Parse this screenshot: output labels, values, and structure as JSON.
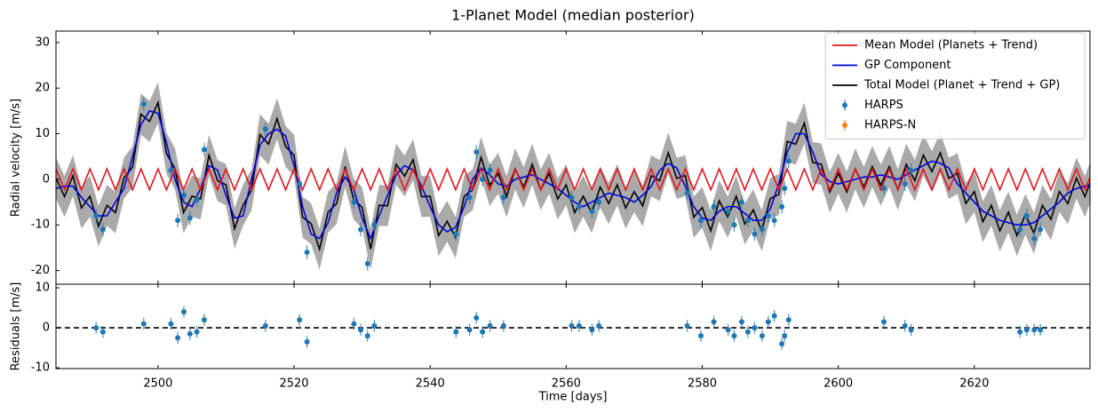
{
  "chart_data": [
    {
      "type": "line",
      "title": "1-Planet Model (median posterior)",
      "ylabel": "Radial velocity [m/s]",
      "x": [
        2485,
        2486.25,
        2487.5,
        2488.75,
        2490,
        2491.25,
        2492.5,
        2493.75,
        2495,
        2496.25,
        2497.5,
        2498.75,
        2500,
        2501.25,
        2502.5,
        2503.75,
        2505,
        2506.25,
        2507.5,
        2508.75,
        2510,
        2511.25,
        2512.5,
        2513.75,
        2515,
        2516.25,
        2517.5,
        2518.75,
        2520,
        2521.25,
        2522.5,
        2523.75,
        2525,
        2526.25,
        2527.5,
        2528.75,
        2530,
        2531.25,
        2532.5,
        2533.75,
        2535,
        2536.25,
        2537.5,
        2538.75,
        2540,
        2541.25,
        2542.5,
        2543.75,
        2545,
        2546.25,
        2547.5,
        2548.75,
        2550,
        2551.25,
        2552.5,
        2553.75,
        2555,
        2556.25,
        2557.5,
        2558.75,
        2560,
        2561.25,
        2562.5,
        2563.75,
        2565,
        2566.25,
        2567.5,
        2568.75,
        2570,
        2571.25,
        2572.5,
        2573.75,
        2575,
        2576.25,
        2577.5,
        2578.75,
        2580,
        2581.25,
        2582.5,
        2583.75,
        2585,
        2586.25,
        2587.5,
        2588.75,
        2590,
        2591.25,
        2592.5,
        2593.75,
        2595,
        2596.25,
        2597.5,
        2598.75,
        2600,
        2601.25,
        2602.5,
        2603.75,
        2605,
        2606.25,
        2607.5,
        2608.75,
        2610,
        2611.25,
        2612.5,
        2613.75,
        2615,
        2616.25,
        2617.5,
        2618.75,
        2620,
        2621.25,
        2622.5,
        2623.75,
        2625,
        2626.25,
        2627.5,
        2628.75,
        2630,
        2631.25,
        2632.5,
        2633.75,
        2635,
        2636.25,
        2637.5
      ],
      "series": [
        {
          "name": "Mean Model (Planets + Trend)",
          "color": "#e8141a",
          "values": [
            2.3,
            -2.3,
            2.3,
            -2.3,
            2.3,
            -2.3,
            2.3,
            -2.3,
            2.3,
            -2.3,
            2.3,
            -2.3,
            2.3,
            -2.3,
            2.3,
            -2.3,
            2.3,
            -2.3,
            2.3,
            -2.3,
            2.3,
            -2.3,
            2.3,
            -2.3,
            2.3,
            -2.3,
            2.3,
            -2.3,
            2.3,
            -2.3,
            2.3,
            -2.3,
            2.3,
            -2.3,
            2.3,
            -2.3,
            2.3,
            -2.3,
            2.3,
            -2.3,
            2.3,
            -2.3,
            2.3,
            -2.3,
            2.3,
            -2.3,
            2.3,
            -2.3,
            2.3,
            -2.3,
            2.3,
            -2.3,
            2.3,
            -2.3,
            2.3,
            -2.3,
            2.3,
            -2.3,
            2.3,
            -2.3,
            2.3,
            -2.3,
            2.3,
            -2.3,
            2.3,
            -2.3,
            2.3,
            -2.3,
            2.3,
            -2.3,
            2.3,
            -2.3,
            2.3,
            -2.3,
            2.3,
            -2.3,
            2.3,
            -2.3,
            2.3,
            -2.3,
            2.3,
            -2.3,
            2.3,
            -2.3,
            2.3,
            -2.3,
            2.3,
            -2.3,
            2.3,
            -2.3,
            2.3,
            -2.3,
            2.3,
            -2.3,
            2.3,
            -2.3,
            2.3,
            -2.3,
            2.3,
            -2.3,
            2.3,
            -2.3,
            2.3,
            -2.3,
            2.3,
            -2.3,
            2.3,
            -2.3,
            2.3,
            -2.3,
            2.3,
            -2.3,
            2.3,
            -2.3,
            2.3,
            -2.3,
            2.3,
            -2.3,
            2.3,
            -2.3,
            2.3,
            -2.3,
            2.3
          ]
        },
        {
          "name": "GP Component",
          "color": "#0000e0",
          "values": [
            -2,
            -1.5,
            -1.5,
            -4,
            -6,
            -8,
            -8,
            -5,
            -2,
            5,
            12,
            15,
            14.5,
            8,
            0,
            -5,
            -6,
            -2,
            3,
            2,
            -3.5,
            -8.5,
            -8,
            0,
            7.5,
            10,
            11,
            9.5,
            3,
            -6,
            -12,
            -13,
            -9.5,
            -3,
            0.5,
            -2,
            -8.5,
            -13,
            -8,
            -3.5,
            1,
            3,
            2,
            -1.5,
            -6,
            -10,
            -11.5,
            -10.5,
            -6,
            0,
            2.5,
            1,
            -1,
            -1.5,
            0,
            0.5,
            1,
            0,
            -1,
            -2,
            -3.5,
            -5,
            -6,
            -5,
            -4,
            -3,
            -3.5,
            -4,
            -5,
            -3.5,
            -1.5,
            2,
            3.5,
            2.5,
            -1.5,
            -6,
            -8.5,
            -9,
            -7,
            -6,
            -6,
            -7.5,
            -9,
            -9,
            -6.5,
            -1,
            6,
            10,
            10,
            6,
            1,
            -0.5,
            -1,
            -0.5,
            0,
            0.5,
            0.5,
            1,
            0.5,
            0,
            1,
            2,
            3,
            4,
            3.5,
            2.5,
            -1,
            -3,
            -5,
            -7,
            -8,
            -9,
            -9.5,
            -10,
            -10,
            -9.5,
            -8,
            -6.5,
            -5,
            -3,
            -2,
            -1.5,
            -1
          ]
        },
        {
          "name": "Total Model (Planet + Trend + GP)",
          "color": "#000000",
          "values": [
            0.3,
            -3.8,
            0.8,
            -6.3,
            -3.7,
            -10.3,
            -5.7,
            -7.3,
            0.3,
            2.7,
            14.3,
            12.7,
            16.8,
            5.7,
            2.3,
            -7.3,
            -3.7,
            -4.3,
            5.3,
            -0.3,
            -1.2,
            -10.8,
            -5.7,
            -2.3,
            9.8,
            7.7,
            13.3,
            7.2,
            5.3,
            -8.3,
            -9.7,
            -15.3,
            -7.2,
            -5.3,
            2.8,
            -4.3,
            -6.2,
            -15.3,
            -5.7,
            -5.8,
            3.3,
            0.7,
            4.3,
            -3.8,
            -3.7,
            -12.3,
            -9.2,
            -12.8,
            -3.7,
            -2.3,
            4.8,
            -1.3,
            1.3,
            -3.8,
            2.3,
            -1.8,
            3.3,
            -2.3,
            1.3,
            -4.3,
            -1.2,
            -7.3,
            -3.7,
            -7.3,
            -1.7,
            -5.3,
            -1.2,
            -6.3,
            -2.7,
            -5.8,
            0.8,
            -0.3,
            5.8,
            0.2,
            0.8,
            -8.3,
            -6.2,
            -11.3,
            -4.7,
            -8.3,
            -3.7,
            -9.8,
            -6.7,
            -11.3,
            -4.2,
            -3.3,
            8.3,
            7.7,
            12.3,
            3.7,
            3.3,
            -2.8,
            1.3,
            -2.8,
            2.3,
            -1.8,
            2.8,
            -1.3,
            2.8,
            -2.3,
            3.3,
            -0.3,
            5.3,
            1.7,
            5.8,
            0.2,
            1.3,
            -5.3,
            -2.7,
            -9.3,
            -5.7,
            -11.3,
            -7.2,
            -12.3,
            -7.7,
            -11.8,
            -5.7,
            -8.8,
            -2.7,
            -5.3,
            0.3,
            -3.8,
            1.3
          ]
        }
      ],
      "band": {
        "color": "#aaaaaa",
        "upper": [
          4.8,
          0.7,
          5.3,
          -1.8,
          0.8,
          -5.8,
          -1.2,
          -2.8,
          4.8,
          7.2,
          18.8,
          17.2,
          21.3,
          10.2,
          6.8,
          -2.8,
          0.8,
          0.2,
          9.8,
          4.2,
          3.3,
          -6.3,
          -1.2,
          2.2,
          14.3,
          12.2,
          17.8,
          11.7,
          9.8,
          -3.8,
          -5.2,
          -10.8,
          -2.7,
          -0.8,
          7.3,
          0.2,
          -1.7,
          -10.8,
          -1.2,
          -1.3,
          7.8,
          5.2,
          8.8,
          0.7,
          0.8,
          -7.8,
          -4.7,
          -8.3,
          0.8,
          2.2,
          9.3,
          3.2,
          5.8,
          0.7,
          6.8,
          2.7,
          7.8,
          2.2,
          5.8,
          0.2,
          3.3,
          -2.8,
          0.8,
          -2.8,
          2.8,
          -0.8,
          3.3,
          -1.8,
          1.8,
          -1.3,
          5.3,
          4.2,
          10.3,
          4.7,
          5.3,
          -3.8,
          -1.7,
          -6.8,
          -0.2,
          -3.8,
          0.8,
          -5.3,
          -2.2,
          -6.8,
          0.3,
          1.2,
          12.8,
          12.2,
          16.8,
          8.2,
          7.8,
          1.7,
          5.8,
          1.7,
          6.8,
          2.7,
          7.3,
          3.2,
          7.3,
          2.2,
          7.8,
          4.2,
          9.8,
          6.2,
          10.3,
          4.7,
          5.8,
          -0.8,
          1.8,
          -4.8,
          -1.2,
          -6.8,
          -2.7,
          -7.8,
          -3.2,
          -7.3,
          -1.2,
          -4.3,
          1.8,
          -0.8,
          4.8,
          0.7,
          5.8
        ],
        "lower": [
          -4.2,
          -8.3,
          -3.7,
          -10.8,
          -8.2,
          -14.8,
          -10.2,
          -11.8,
          -4.2,
          -1.8,
          9.8,
          8.2,
          12.3,
          1.2,
          -2.2,
          -11.8,
          -8.2,
          -8.8,
          0.8,
          -4.8,
          -5.7,
          -15.3,
          -10.2,
          -6.8,
          5.3,
          3.2,
          8.8,
          2.7,
          0.8,
          -12.8,
          -14.2,
          -19.8,
          -11.7,
          -9.8,
          -1.7,
          -8.8,
          -10.7,
          -19.8,
          -10.2,
          -10.3,
          -1.2,
          -3.8,
          -0.2,
          -8.3,
          -8.2,
          -16.8,
          -13.7,
          -17.3,
          -8.2,
          -6.8,
          0.3,
          -5.8,
          -3.2,
          -8.3,
          -2.2,
          -6.3,
          -1.2,
          -6.8,
          -3.2,
          -8.8,
          -5.7,
          -11.8,
          -8.2,
          -11.8,
          -6.2,
          -9.8,
          -5.7,
          -10.8,
          -7.2,
          -10.3,
          -3.7,
          -4.8,
          1.3,
          -4.3,
          -3.7,
          -12.8,
          -10.7,
          -15.8,
          -9.2,
          -12.8,
          -8.2,
          -14.3,
          -11.2,
          -15.8,
          -8.7,
          -7.8,
          3.8,
          3.2,
          7.8,
          -0.8,
          -1.2,
          -7.3,
          -3.2,
          -7.3,
          -2.2,
          -6.3,
          -1.7,
          -5.8,
          -1.7,
          -6.8,
          -1.2,
          -4.8,
          0.8,
          -2.8,
          1.3,
          -4.3,
          -3.2,
          -9.8,
          -7.2,
          -13.8,
          -10.2,
          -15.8,
          -11.7,
          -16.8,
          -12.2,
          -16.3,
          -10.2,
          -13.3,
          -7.2,
          -9.8,
          -4.2,
          -8.3,
          -3.2
        ]
      },
      "errorbars": [
        {
          "name": "HARPS",
          "color": "#1f77b4",
          "x": [
            2490.9,
            2491.9,
            2497.9,
            2501.9,
            2502.9,
            2503.8,
            2504.7,
            2505.7,
            2506.8,
            2515.8,
            2520.8,
            2521.9,
            2528.8,
            2529.8,
            2530.8,
            2531.8,
            2543.8,
            2545.8,
            2546.8,
            2547.7,
            2548.8,
            2550.8,
            2560.8,
            2561.9,
            2563.8,
            2564.8,
            2577.8,
            2579.8,
            2581.7,
            2583.8,
            2584.7,
            2585.8,
            2586.7,
            2587.7,
            2588.8,
            2589.7,
            2590.6,
            2591.7,
            2592.1,
            2592.7,
            2606.7,
            2609.8,
            2610.7,
            2626.7,
            2627.7,
            2628.8,
            2629.7
          ],
          "values": [
            -8,
            -11,
            16.5,
            2,
            -9,
            -3.5,
            -8.5,
            -4.5,
            6.5,
            11,
            -1,
            -16,
            -5,
            -11,
            -18.5,
            -10,
            -12,
            -4,
            6,
            0,
            2,
            -4,
            -4,
            -6,
            -7,
            -5,
            -3,
            -9,
            -6,
            -7,
            -10,
            -5,
            -9,
            -12,
            -11,
            -8,
            -9,
            -6,
            -2,
            4,
            -2,
            -1,
            2,
            -11,
            -8,
            -13,
            -11
          ],
          "errors": [
            1.5,
            1.5,
            1.5,
            1.5,
            1.5,
            1.5,
            1.5,
            1.5,
            1.5,
            1.5,
            1.5,
            1.5,
            1.5,
            1.5,
            1.5,
            1.5,
            1.5,
            1.5,
            1.5,
            1.5,
            1.5,
            1.5,
            1.5,
            1.5,
            1.5,
            1.5,
            1.5,
            1.5,
            1.5,
            1.5,
            1.5,
            1.5,
            1.5,
            1.5,
            1.5,
            1.5,
            1.5,
            1.5,
            1.5,
            1.5,
            1.5,
            1.5,
            1.5,
            1.5,
            1.5,
            1.5,
            1.5
          ]
        },
        {
          "name": "HARPS-N",
          "color": "#ff7f0e",
          "x": [],
          "values": [],
          "errors": []
        }
      ],
      "xlim": [
        2485,
        2637
      ],
      "xticks": [
        2500,
        2520,
        2540,
        2560,
        2580,
        2600,
        2620
      ],
      "ylim": [
        -23,
        32.5
      ],
      "yticks": [
        -20,
        -10,
        0,
        10,
        20,
        30
      ],
      "legend": "upper right"
    },
    {
      "type": "errorbar",
      "ylabel": "Residuals [m/s]",
      "xlabel": "Time [days]",
      "hline": 0,
      "errorbars": [
        {
          "color": "#1f77b4",
          "x": [
            2490.9,
            2491.9,
            2497.9,
            2501.9,
            2502.9,
            2503.8,
            2504.7,
            2505.7,
            2506.8,
            2515.8,
            2520.8,
            2521.9,
            2528.8,
            2529.8,
            2530.8,
            2531.8,
            2543.8,
            2545.8,
            2546.8,
            2547.7,
            2548.8,
            2550.8,
            2560.8,
            2561.9,
            2563.8,
            2564.8,
            2577.8,
            2579.8,
            2581.7,
            2583.8,
            2584.7,
            2585.8,
            2586.7,
            2587.7,
            2588.8,
            2589.7,
            2590.6,
            2591.7,
            2592.1,
            2592.7,
            2606.7,
            2609.8,
            2610.7,
            2626.7,
            2627.7,
            2628.8,
            2629.7
          ],
          "values": [
            0,
            -1,
            1,
            1,
            -2.5,
            4,
            -1.5,
            -1,
            2,
            0.5,
            2,
            -3.5,
            1,
            -0.5,
            -2,
            0.5,
            -1,
            -0.5,
            2.5,
            -1,
            0.5,
            0.5,
            0.5,
            0.5,
            -0.5,
            0.5,
            0.5,
            -2,
            1.5,
            -0.5,
            -2,
            1.5,
            -1,
            0,
            -2,
            1.5,
            3,
            -4,
            -2,
            2,
            1.5,
            0.5,
            -0.5,
            -1,
            -0.5,
            -0.5,
            -0.5
          ],
          "errors": [
            1.5,
            1.5,
            1.5,
            1.5,
            1.5,
            1.5,
            1.5,
            1.5,
            1.5,
            1.5,
            1.5,
            1.5,
            1.5,
            1.5,
            1.5,
            1.5,
            1.5,
            1.5,
            1.5,
            1.5,
            1.5,
            1.5,
            1.5,
            1.5,
            1.5,
            1.5,
            1.5,
            1.5,
            1.5,
            1.5,
            1.5,
            1.5,
            1.5,
            1.5,
            1.5,
            1.5,
            1.5,
            1.5,
            1.5,
            1.5,
            1.5,
            1.5,
            1.5,
            1.5,
            1.5,
            1.5,
            1.5
          ]
        }
      ],
      "xlim": [
        2485,
        2637
      ],
      "xticks": [
        2500,
        2520,
        2540,
        2560,
        2580,
        2600,
        2620
      ],
      "ylim": [
        -10.2,
        10.9
      ],
      "yticks": [
        -10,
        0,
        10
      ]
    }
  ]
}
